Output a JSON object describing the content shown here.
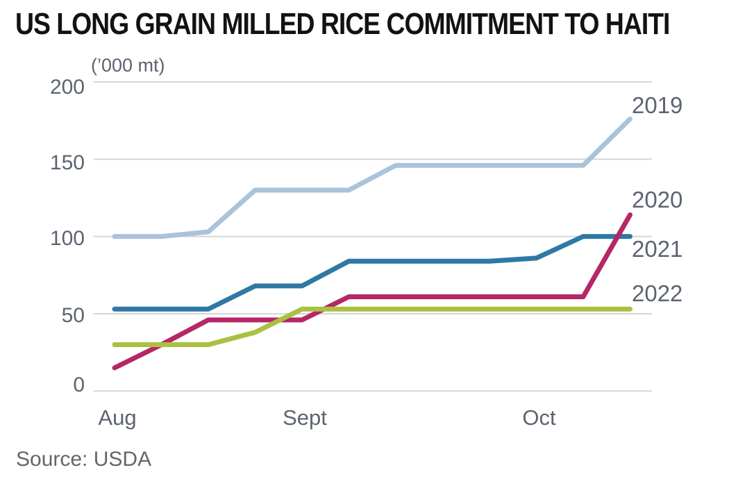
{
  "page": {
    "title": "US LONG GRAIN MILLED RICE COMMITMENT TO HAITI",
    "source": "Source: USDA"
  },
  "chart_data": {
    "type": "line",
    "title": "US LONG GRAIN MILLED RICE COMMITMENT TO HAITI",
    "unit_label": "(’000 mt)",
    "source": "Source: USDA",
    "x_axis": {
      "interval": "weekly",
      "points_per_series": 12,
      "month_ticks": [
        {
          "label": "Aug",
          "point": 0
        },
        {
          "label": "Sept",
          "point": 4
        },
        {
          "label": "Oct",
          "point": 9
        }
      ]
    },
    "y_axis": {
      "ticks": [
        0,
        50,
        100,
        150,
        200
      ],
      "ylim": [
        0,
        200
      ],
      "grid": "horizontal"
    },
    "legend_position": "right-of-line-ends",
    "series": [
      {
        "name": "2019",
        "color": "#a9c3db",
        "values": [
          100,
          100,
          103,
          130,
          130,
          130,
          146,
          146,
          146,
          146,
          146,
          176
        ]
      },
      {
        "name": "2020",
        "color": "#b52766",
        "values": [
          15,
          30,
          46,
          46,
          46,
          61,
          61,
          61,
          61,
          61,
          61,
          114
        ]
      },
      {
        "name": "2021",
        "color": "#2e79a4",
        "values": [
          53,
          53,
          53,
          68,
          68,
          84,
          84,
          84,
          84,
          86,
          100,
          100
        ]
      },
      {
        "name": "2022",
        "color": "#abc042",
        "values": [
          30,
          30,
          30,
          38,
          53,
          53,
          53,
          53,
          53,
          53,
          53,
          53
        ]
      }
    ],
    "colors": {
      "grid": "#d6d6d8",
      "axis_text": "#5c6370",
      "title_text": "#121212",
      "source_text": "#63666b"
    }
  }
}
